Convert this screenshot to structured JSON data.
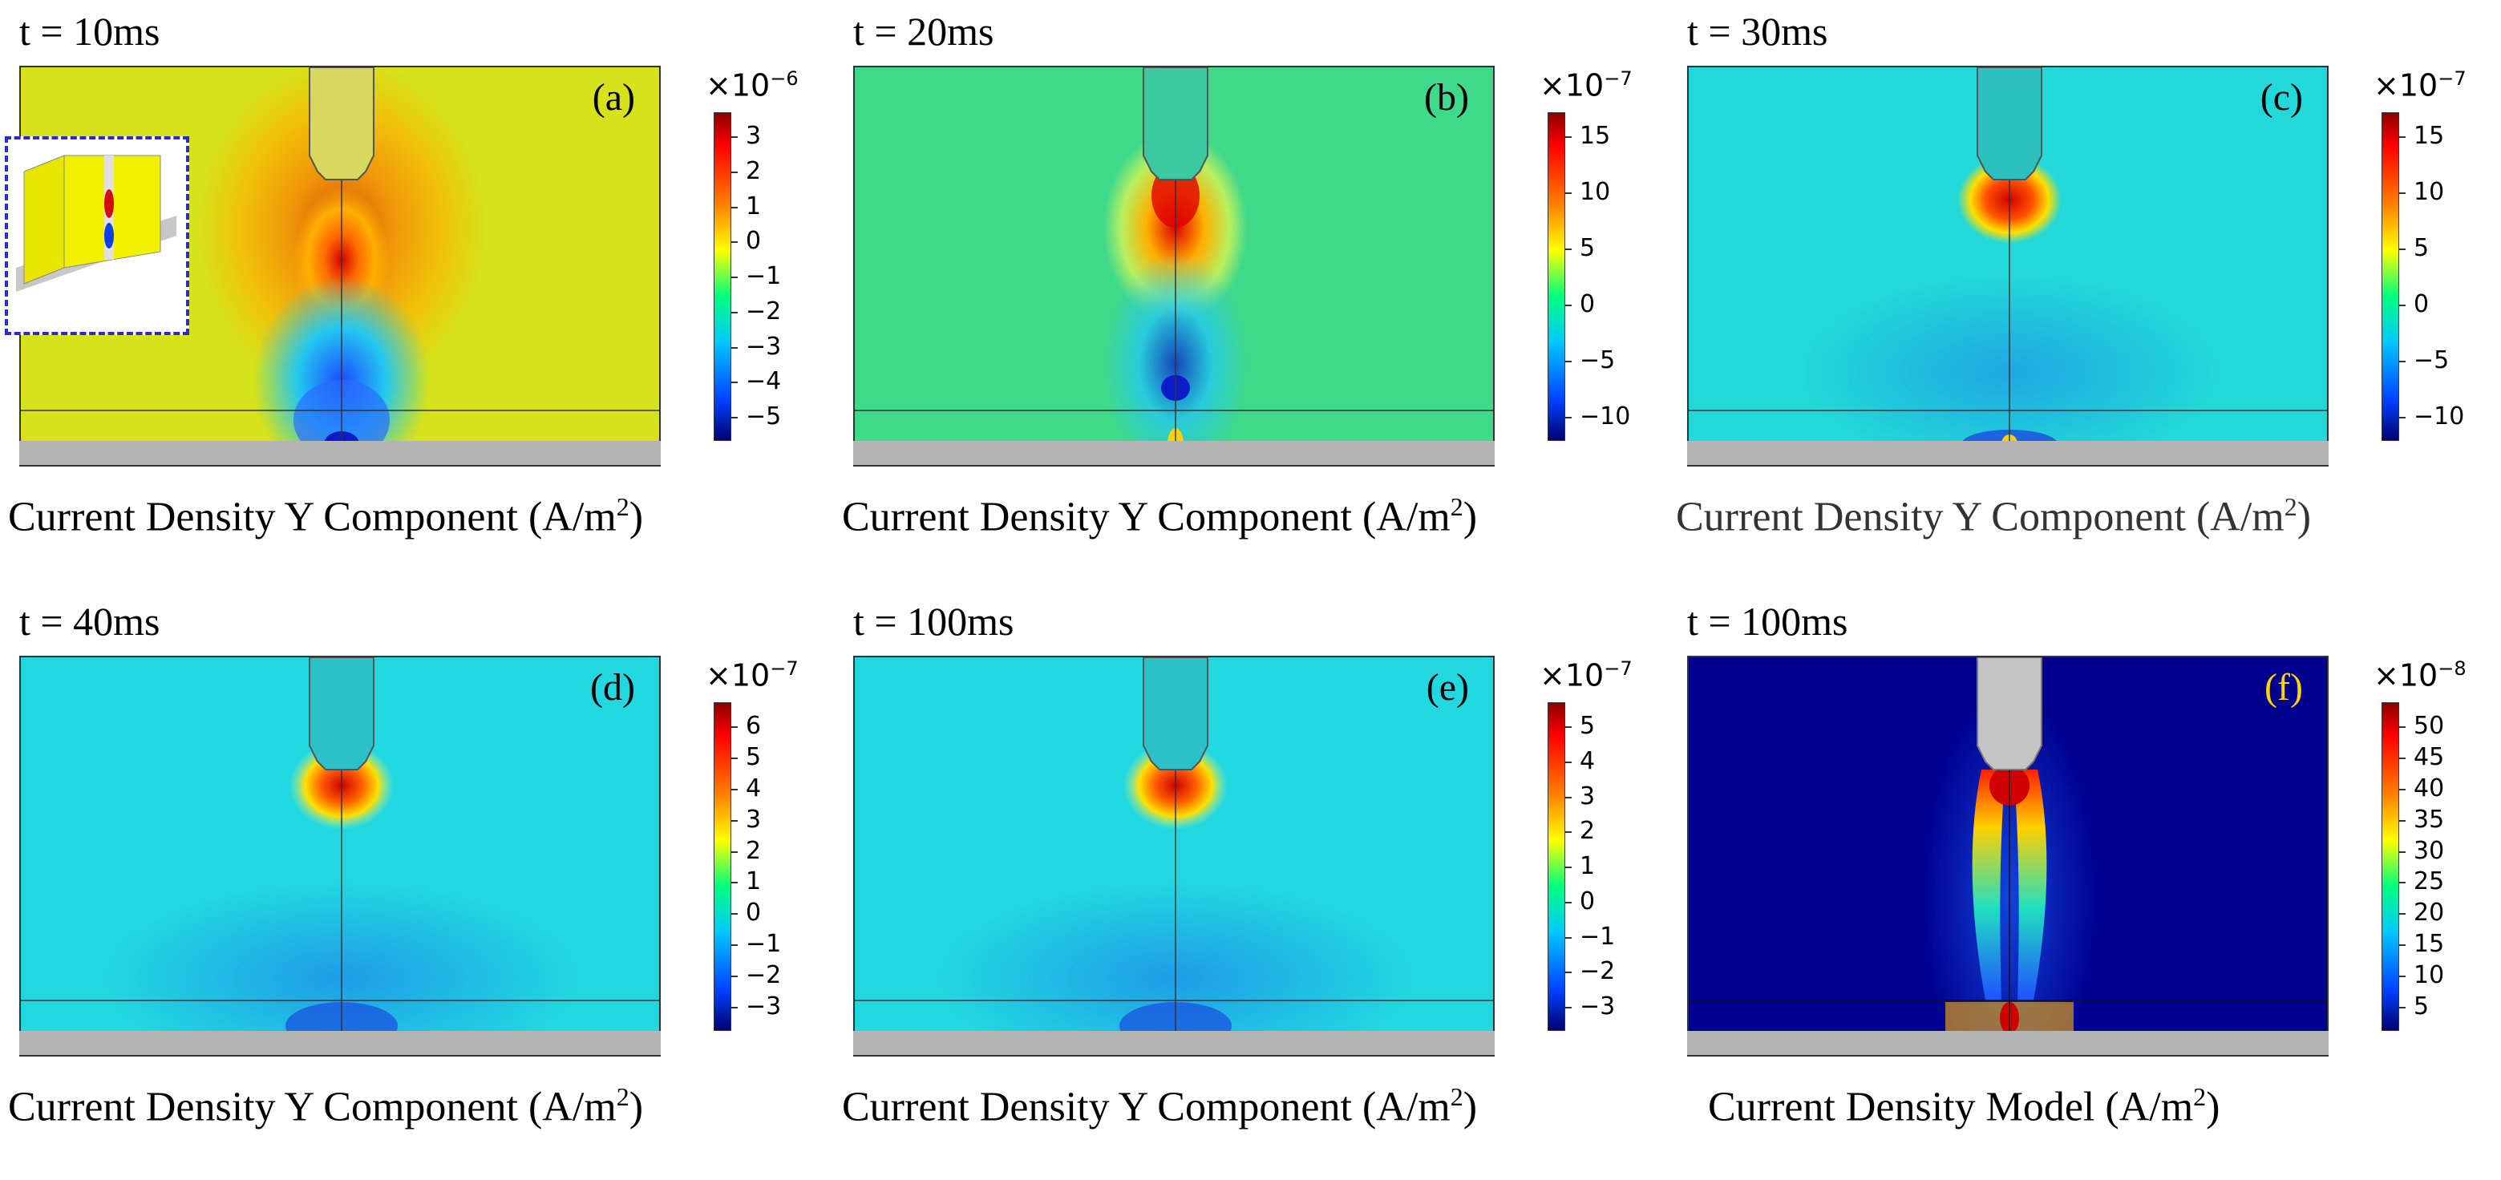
{
  "panels": [
    {
      "id": "a",
      "time": "t = 10ms",
      "letter": "(a)",
      "caption": "Current Density Y Component (A/m",
      "caption_sup": "2",
      "caption_end": ")",
      "multiplier_base": "×10",
      "multiplier_exp": "−6",
      "ticks": [
        "3",
        "2",
        "1",
        "0",
        "−1",
        "−2",
        "−3",
        "−4",
        "−5"
      ],
      "field_color": "#d6e21a"
    },
    {
      "id": "b",
      "time": "t = 20ms",
      "letter": "(b)",
      "caption": "Current Density Y Component (A/m",
      "caption_sup": "2",
      "caption_end": ")",
      "multiplier_base": "×10",
      "multiplier_exp": "−7",
      "ticks": [
        "15",
        "10",
        "5",
        "0",
        "−5",
        "−10"
      ],
      "field_color": "#3fd98a"
    },
    {
      "id": "c",
      "time": "t = 30ms",
      "letter": "(c)",
      "caption": "Current Density Y Component (A/m",
      "caption_sup": "2",
      "caption_end": ")",
      "multiplier_base": "×10",
      "multiplier_exp": "−7",
      "ticks": [
        "15",
        "10",
        "5",
        "0",
        "−5",
        "−10"
      ],
      "field_color": "#22d8d8"
    },
    {
      "id": "d",
      "time": "t = 40ms",
      "letter": "(d)",
      "caption": "Current Density Y Component (A/m",
      "caption_sup": "2",
      "caption_end": ")",
      "multiplier_base": "×10",
      "multiplier_exp": "−7",
      "ticks": [
        "6",
        "5",
        "4",
        "3",
        "2",
        "1",
        "0",
        "−1",
        "−2",
        "−3"
      ],
      "field_color": "#22d8e0"
    },
    {
      "id": "e",
      "time": "t = 100ms",
      "letter": "(e)",
      "caption": "Current Density Y Component (A/m",
      "caption_sup": "2",
      "caption_end": ")",
      "multiplier_base": "×10",
      "multiplier_exp": "−7",
      "ticks": [
        "5",
        "4",
        "3",
        "2",
        "1",
        "0",
        "−1",
        "−2",
        "−3"
      ],
      "field_color": "#22d8e0"
    },
    {
      "id": "f",
      "time": "t = 100ms",
      "letter": "(f)",
      "caption": "Current Density Model (A/m",
      "caption_sup": "2",
      "caption_end": ")",
      "multiplier_base": "×10",
      "multiplier_exp": "−8",
      "ticks": [
        "50",
        "45",
        "40",
        "35",
        "30",
        "25",
        "20",
        "15",
        "10",
        "5"
      ],
      "field_color": "#00008f"
    }
  ]
}
